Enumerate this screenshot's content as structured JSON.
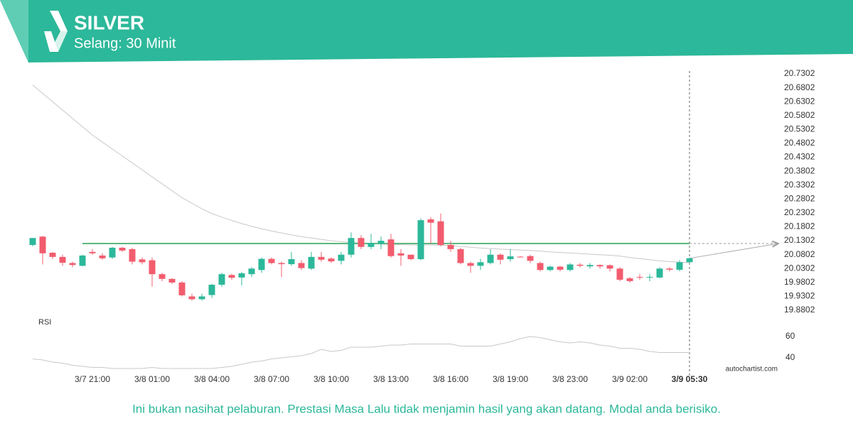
{
  "chart_data": {
    "type": "candlestick",
    "title": "SILVER",
    "subtitle": "Selang: 30 Minit",
    "categories": [
      null,
      null,
      null,
      null,
      null,
      null,
      "3/7 21:00",
      null,
      null,
      null,
      null,
      null,
      "3/8 01:00",
      null,
      null,
      null,
      null,
      null,
      "3/8 04:00",
      null,
      null,
      null,
      null,
      null,
      "3/8 07:00",
      null,
      null,
      null,
      null,
      null,
      "3/8 10:00",
      null,
      null,
      null,
      null,
      null,
      "3/8 13:00",
      null,
      null,
      null,
      null,
      null,
      "3/8 16:00",
      null,
      null,
      null,
      null,
      null,
      "3/8 19:00",
      null,
      null,
      null,
      null,
      null,
      "3/8 23:00",
      null,
      null,
      null,
      null,
      null,
      "3/9 02:00",
      null,
      null,
      null,
      null,
      null,
      "3/9 05:30"
    ],
    "open": [
      20.115,
      20.145,
      20.087,
      20.072,
      20.05,
      20.04,
      20.09,
      20.077,
      20.07,
      20.105,
      20.1,
      20.063,
      20.06,
      20.01,
      19.993,
      19.98,
      19.93,
      19.92,
      19.935,
      19.972,
      20.007,
      19.998,
      20.01,
      20.025,
      20.065,
      20.05,
      20.046,
      20.05,
      20.03,
      20.072,
      20.066,
      20.058,
      20.08,
      20.14,
      20.108,
      20.12,
      20.135,
      20.085,
      20.08,
      20.064,
      20.207,
      20.2,
      20.115,
      20.1,
      20.05,
      20.04,
      20.05,
      20.08,
      20.064,
      20.073,
      20.075,
      20.05,
      20.025,
      20.037,
      20.025,
      20.044,
      20.038,
      20.043,
      20.042,
      20.03,
      19.995,
      20.0,
      19.998,
      19.998,
      20.03,
      20.026,
      20.053
    ],
    "high": [
      20.14,
      20.148,
      20.09,
      20.08,
      20.055,
      20.08,
      20.1,
      20.085,
      20.108,
      20.108,
      20.105,
      20.07,
      20.07,
      20.015,
      19.995,
      19.985,
      19.94,
      19.94,
      19.975,
      20.015,
      20.012,
      20.018,
      20.035,
      20.07,
      20.07,
      20.055,
      20.09,
      20.06,
      20.09,
      20.09,
      20.07,
      20.09,
      20.16,
      20.15,
      20.155,
      20.145,
      20.155,
      20.1,
      20.08,
      20.21,
      20.215,
      20.228,
      20.13,
      20.105,
      20.055,
      20.065,
      20.1,
      20.085,
      20.1,
      20.075,
      20.08,
      20.055,
      20.04,
      20.04,
      20.05,
      20.05,
      20.05,
      20.045,
      20.045,
      20.035,
      20.0,
      20.01,
      20.01,
      20.035,
      20.035,
      20.06,
      20.07
    ],
    "low": [
      20.11,
      20.045,
      20.065,
      20.04,
      20.035,
      20.038,
      20.08,
      20.062,
      20.065,
      20.09,
      20.045,
      20.045,
      19.965,
      19.985,
      19.975,
      19.93,
      19.915,
      19.915,
      19.925,
      19.965,
      19.99,
      19.97,
      20.0,
      20.015,
      20.045,
      20.0,
      20.04,
      20.025,
      20.025,
      20.055,
      20.05,
      20.045,
      20.07,
      20.1,
      20.1,
      20.1,
      20.07,
      20.04,
      20.06,
      20.06,
      20.12,
      20.11,
      20.09,
      20.045,
      20.015,
      20.025,
      20.045,
      20.045,
      20.055,
      20.07,
      20.05,
      20.02,
      20.02,
      20.02,
      20.02,
      20.035,
      20.03,
      20.03,
      20.02,
      19.985,
      19.98,
      19.99,
      19.985,
      19.995,
      20.02,
      20.02,
      20.05
    ],
    "close": [
      20.14,
      20.085,
      20.072,
      20.051,
      20.043,
      20.077,
      20.085,
      20.067,
      20.105,
      20.095,
      20.055,
      20.053,
      20.01,
      19.993,
      19.98,
      19.934,
      19.92,
      19.93,
      19.972,
      20.01,
      19.997,
      20.013,
      20.03,
      20.065,
      20.05,
      20.046,
      20.064,
      20.032,
      20.072,
      20.062,
      20.056,
      20.08,
      20.14,
      20.108,
      20.122,
      20.13,
      20.075,
      20.077,
      20.064,
      20.204,
      20.195,
      20.115,
      20.1,
      20.05,
      20.04,
      20.053,
      20.08,
      20.062,
      20.074,
      20.071,
      20.058,
      20.025,
      20.037,
      20.026,
      20.045,
      20.04,
      20.043,
      20.038,
      20.03,
      19.99,
      19.985,
      19.998,
      20.0,
      20.03,
      20.026,
      20.053,
      20.067
    ],
    "up_color": "#2cb89a",
    "down_color": "#f25c6e",
    "ylim": [
      19.8802,
      20.7302
    ],
    "yticks": [
      19.8802,
      19.9302,
      19.9802,
      20.0302,
      20.0802,
      20.1302,
      20.1802,
      20.2302,
      20.2802,
      20.3302,
      20.3802,
      20.4302,
      20.4802,
      20.5302,
      20.5802,
      20.6302,
      20.6802,
      20.7302
    ],
    "grid": false,
    "level": 20.12,
    "level_color": "#5cb87e",
    "moving_average": {
      "color": "#c8c8c8",
      "values": [
        20.69,
        20.66,
        20.63,
        20.6,
        20.57,
        20.54,
        20.51,
        20.485,
        20.46,
        20.435,
        20.41,
        20.385,
        20.36,
        20.335,
        20.31,
        20.285,
        20.265,
        20.245,
        20.228,
        20.215,
        20.203,
        20.192,
        20.182,
        20.173,
        20.165,
        20.158,
        20.151,
        20.145,
        20.14,
        20.135,
        20.13,
        20.127,
        20.124,
        20.122,
        20.12,
        20.118,
        20.117,
        20.116,
        20.115,
        20.115,
        20.115,
        20.114,
        20.113,
        20.11,
        20.107,
        20.104,
        20.102,
        20.1,
        20.098,
        20.097,
        20.095,
        20.093,
        20.09,
        20.088,
        20.086,
        20.084,
        20.082,
        20.08,
        20.078,
        20.075,
        20.07,
        20.066,
        20.062,
        20.058,
        20.055,
        20.053,
        20.052
      ]
    },
    "rsi": {
      "label": "RSI",
      "color": "#c8c8c8",
      "ylim": [
        25,
        75
      ],
      "yticks": [
        60,
        40
      ],
      "values": [
        39,
        38,
        36,
        35,
        33,
        32,
        31,
        31,
        30,
        30,
        30,
        30,
        31,
        30,
        30,
        30,
        30,
        30,
        30,
        31,
        32,
        34,
        36,
        37,
        39,
        40,
        41,
        42,
        44,
        48,
        46,
        47,
        50,
        50,
        50,
        51,
        52,
        52,
        53,
        53,
        53,
        53,
        53,
        51,
        51,
        51,
        51,
        53,
        55,
        58,
        60,
        59,
        57,
        55,
        54,
        55,
        54,
        52,
        51,
        49,
        49,
        48,
        46,
        45,
        45,
        45,
        45
      ]
    }
  },
  "watermark": "autochartist.com",
  "footer": "Ini bukan nasihat pelaburan. Prestasi Masa Lalu tidak menjamin hasil yang akan datang. Modal anda berisiko."
}
